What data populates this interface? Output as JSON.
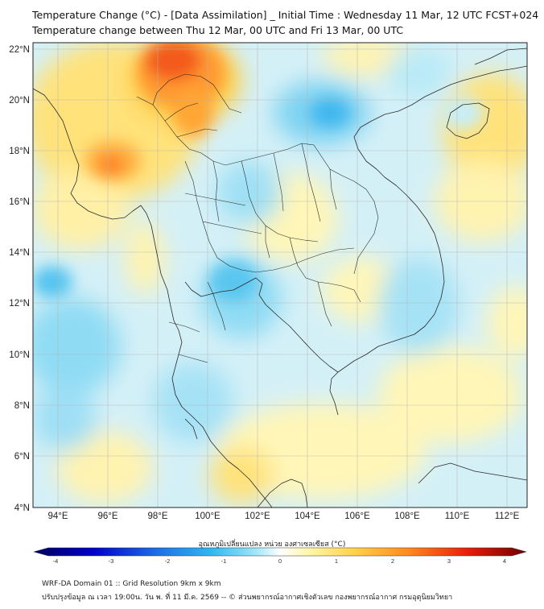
{
  "header": {
    "title_line1": "Temperature Change (°C) - [Data Assimilation] _ Initial Time : Wednesday 11 Mar, 12 UTC FCST+024",
    "title_line2": "Temperature change between Thu 12 Mar, 00 UTC and Fri 13 Mar, 00 UTC"
  },
  "map": {
    "lat_labels": [
      "22°N",
      "20°N",
      "18°N",
      "16°N",
      "14°N",
      "12°N",
      "10°N",
      "8°N",
      "6°N",
      "4°N"
    ],
    "lon_labels": [
      "94°E",
      "96°E",
      "98°E",
      "100°E",
      "102°E",
      "104°E",
      "106°E",
      "108°E",
      "110°E",
      "112°E"
    ],
    "lat_range": [
      4,
      22.2
    ],
    "lon_range": [
      93,
      112.8
    ],
    "gridlines": true
  },
  "colorbar": {
    "title": "อุณหภูมิเปลี่ยนแปลง หน่วย องศาเซลเซียส (°C)",
    "ticks": [
      "-4",
      "-3",
      "-2",
      "-1",
      "0",
      "1",
      "2",
      "3",
      "4"
    ],
    "range": [
      -4,
      4
    ],
    "colors": [
      "#00005e",
      "#0000c8",
      "#1e6ee6",
      "#2fb8f0",
      "#9fe6f7",
      "#ffffff",
      "#fff6a8",
      "#ffd24a",
      "#ff8a1e",
      "#e81e0a",
      "#6e0000"
    ]
  },
  "footer": {
    "line1": "WRF-DA Domain 01 :: Grid Resolution 9km x 9km",
    "line2": "ปรับปรุงข้อมูล ณ เวลา 19:00น. วัน พ. ที่ 11 มี.ค. 2569 -- © ส่วนพยากรณ์อากาศเชิงตัวเลข กองพยากรณ์อากาศ กรมอุตุนิยมวิทยา"
  }
}
